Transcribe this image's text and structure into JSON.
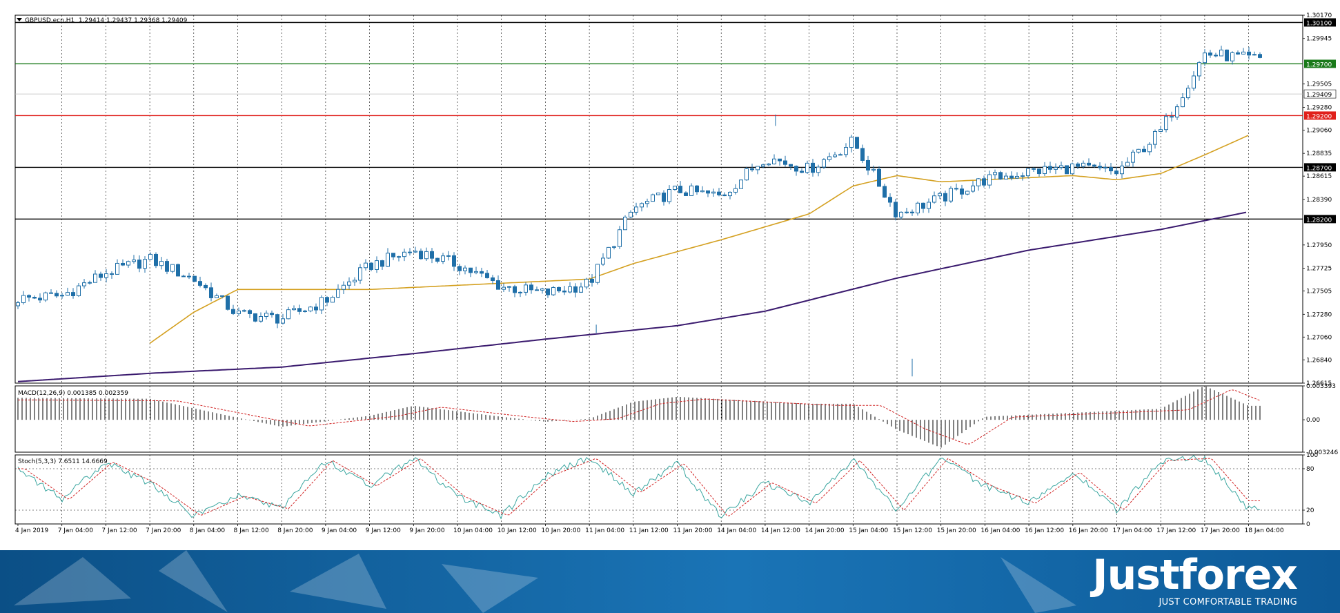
{
  "main_panel": {
    "header_label": "GBPUSD.ecn,H1  1.29414 1.29437 1.29368 1.29409",
    "y_ticks": [
      "1.30170",
      "1.29945",
      "1.29505",
      "1.29280",
      "1.29060",
      "1.28835",
      "1.28615",
      "1.28390",
      "1.27950",
      "1.27725",
      "1.27505",
      "1.27280",
      "1.27060",
      "1.26840",
      "1.26615"
    ],
    "last_price_label": "1.29409"
  },
  "levels": [
    {
      "value": 1.301,
      "label": "1.30100",
      "color": "#000000"
    },
    {
      "value": 1.297,
      "label": "1.29700",
      "color": "#1a7a1a"
    },
    {
      "value": 1.292,
      "label": "1.29200",
      "color": "#e0201b"
    },
    {
      "value": 1.287,
      "label": "1.28700",
      "color": "#000000"
    },
    {
      "value": 1.282,
      "label": "1.28200",
      "color": "#000000"
    }
  ],
  "macd_panel": {
    "header_label": "MACD(12,26,9) 0.001385 0.002359",
    "y_ticks": [
      "0.003393",
      "0.00",
      "-0.003246"
    ]
  },
  "stoch_panel": {
    "header_label": "Stoch(5,3,3) 7.6511 14.6669",
    "y_ticks": [
      "100",
      "80",
      "20",
      "0"
    ]
  },
  "x_axis_labels": [
    "4 Jan 2019",
    "7 Jan 04:00",
    "7 Jan 12:00",
    "7 Jan 20:00",
    "8 Jan 04:00",
    "8 Jan 12:00",
    "8 Jan 20:00",
    "9 Jan 04:00",
    "9 Jan 12:00",
    "9 Jan 20:00",
    "10 Jan 04:00",
    "10 Jan 12:00",
    "10 Jan 20:00",
    "11 Jan 04:00",
    "11 Jan 12:00",
    "11 Jan 20:00",
    "14 Jan 04:00",
    "14 Jan 12:00",
    "14 Jan 20:00",
    "15 Jan 04:00",
    "15 Jan 12:00",
    "15 Jan 20:00",
    "16 Jan 04:00",
    "16 Jan 12:00",
    "16 Jan 20:00",
    "17 Jan 04:00",
    "17 Jan 12:00",
    "17 Jan 20:00",
    "18 Jan 04:00"
  ],
  "colors": {
    "candle": "#1f6fa8",
    "ma_fast": "#d4a020",
    "ma_slow": "#3a1a6e",
    "macd_signal": "#d02020",
    "stoch_main": "#3aa6a0",
    "stoch_signal": "#d02020",
    "grid": "#000000",
    "footer_bg": "#1565a8"
  },
  "footer": {
    "logo": "Justforex",
    "tagline": "JUST COMFORTABLE TRADING"
  },
  "chart_data": {
    "type": "candlestick",
    "symbol": "GBPUSD.ecn",
    "timeframe": "H1",
    "ylim": [
      1.26615,
      1.3017
    ],
    "anchors": [
      {
        "x": "4 Jan 2019",
        "price": 1.2743
      },
      {
        "x": "7 Jan 04:00",
        "price": 1.2746
      },
      {
        "x": "7 Jan 12:00",
        "price": 1.2768
      },
      {
        "x": "7 Jan 20:00",
        "price": 1.2781
      },
      {
        "x": "8 Jan 04:00",
        "price": 1.2762
      },
      {
        "x": "8 Jan 12:00",
        "price": 1.2728
      },
      {
        "x": "8 Jan 20:00",
        "price": 1.2724
      },
      {
        "x": "9 Jan 04:00",
        "price": 1.2741
      },
      {
        "x": "9 Jan 12:00",
        "price": 1.2775
      },
      {
        "x": "9 Jan 20:00",
        "price": 1.279
      },
      {
        "x": "10 Jan 04:00",
        "price": 1.2776
      },
      {
        "x": "10 Jan 12:00",
        "price": 1.2755
      },
      {
        "x": "10 Jan 20:00",
        "price": 1.2748
      },
      {
        "x": "11 Jan 04:00",
        "price": 1.2758
      },
      {
        "x": "11 Jan 12:00",
        "price": 1.283
      },
      {
        "x": "11 Jan 20:00",
        "price": 1.2848
      },
      {
        "x": "14 Jan 04:00",
        "price": 1.2842
      },
      {
        "x": "14 Jan 12:00",
        "price": 1.288
      },
      {
        "x": "14 Jan 20:00",
        "price": 1.2868
      },
      {
        "x": "15 Jan 04:00",
        "price": 1.2895
      },
      {
        "x": "15 Jan 12:00",
        "price": 1.2825
      },
      {
        "x": "15 Jan 20:00",
        "price": 1.284
      },
      {
        "x": "16 Jan 04:00",
        "price": 1.2858
      },
      {
        "x": "16 Jan 12:00",
        "price": 1.2866
      },
      {
        "x": "16 Jan 20:00",
        "price": 1.287
      },
      {
        "x": "17 Jan 04:00",
        "price": 1.2865
      },
      {
        "x": "17 Jan 12:00",
        "price": 1.2905
      },
      {
        "x": "17 Jan 20:00",
        "price": 1.298
      },
      {
        "x": "18 Jan 04:00",
        "price": 1.2975
      }
    ],
    "ma_fast_anchors": [
      {
        "x": "7 Jan 20:00",
        "price": 1.27
      },
      {
        "x": "8 Jan 04:00",
        "price": 1.273
      },
      {
        "x": "8 Jan 12:00",
        "price": 1.2752
      },
      {
        "x": "8 Jan 20:00",
        "price": 1.2752
      },
      {
        "x": "9 Jan 12:00",
        "price": 1.2752
      },
      {
        "x": "10 Jan 04:00",
        "price": 1.2756
      },
      {
        "x": "11 Jan 04:00",
        "price": 1.2762
      },
      {
        "x": "11 Jan 12:00",
        "price": 1.2777
      },
      {
        "x": "14 Jan 04:00",
        "price": 1.28
      },
      {
        "x": "14 Jan 20:00",
        "price": 1.2825
      },
      {
        "x": "15 Jan 04:00",
        "price": 1.2852
      },
      {
        "x": "15 Jan 12:00",
        "price": 1.2862
      },
      {
        "x": "15 Jan 20:00",
        "price": 1.2856
      },
      {
        "x": "16 Jan 20:00",
        "price": 1.2862
      },
      {
        "x": "17 Jan 04:00",
        "price": 1.2858
      },
      {
        "x": "17 Jan 12:00",
        "price": 1.2864
      },
      {
        "x": "17 Jan 20:00",
        "price": 1.2882
      },
      {
        "x": "18 Jan 04:00",
        "price": 1.2901
      }
    ],
    "ma_slow_anchors": [
      {
        "x": "4 Jan 2019",
        "price": 1.2663
      },
      {
        "x": "7 Jan 20:00",
        "price": 1.2671
      },
      {
        "x": "8 Jan 20:00",
        "price": 1.2677
      },
      {
        "x": "9 Jan 20:00",
        "price": 1.269
      },
      {
        "x": "10 Jan 20:00",
        "price": 1.2704
      },
      {
        "x": "11 Jan 20:00",
        "price": 1.2717
      },
      {
        "x": "14 Jan 12:00",
        "price": 1.2731
      },
      {
        "x": "15 Jan 12:00",
        "price": 1.2763
      },
      {
        "x": "16 Jan 12:00",
        "price": 1.279
      },
      {
        "x": "17 Jan 12:00",
        "price": 1.281
      },
      {
        "x": "18 Jan 04:00",
        "price": 1.2827
      }
    ],
    "macd_ylim": [
      -0.003246,
      0.003393
    ],
    "macd_anchors": [
      {
        "x": "4 Jan 2019",
        "value": 0.0022
      },
      {
        "x": "7 Jan 20:00",
        "value": 0.0021
      },
      {
        "x": "8 Jan 12:00",
        "value": 0.0002
      },
      {
        "x": "8 Jan 20:00",
        "value": -0.0007
      },
      {
        "x": "9 Jan 12:00",
        "value": 0.0004
      },
      {
        "x": "9 Jan 20:00",
        "value": 0.0014
      },
      {
        "x": "10 Jan 12:00",
        "value": 0.0003
      },
      {
        "x": "10 Jan 20:00",
        "value": -0.0002
      },
      {
        "x": "11 Jan 04:00",
        "value": 0.0001
      },
      {
        "x": "11 Jan 12:00",
        "value": 0.0018
      },
      {
        "x": "11 Jan 20:00",
        "value": 0.0023
      },
      {
        "x": "14 Jan 20:00",
        "value": 0.0016
      },
      {
        "x": "15 Jan 04:00",
        "value": 0.0016
      },
      {
        "x": "15 Jan 12:00",
        "value": -0.001
      },
      {
        "x": "15 Jan 20:00",
        "value": -0.0028
      },
      {
        "x": "16 Jan 04:00",
        "value": 0.0003
      },
      {
        "x": "16 Jan 20:00",
        "value": 0.0007
      },
      {
        "x": "17 Jan 12:00",
        "value": 0.0011
      },
      {
        "x": "17 Jan 20:00",
        "value": 0.0034
      },
      {
        "x": "18 Jan 04:00",
        "value": 0.0014
      }
    ],
    "stoch_ylim": [
      0,
      100
    ],
    "stoch_anchors": [
      {
        "x": "4 Jan 2019",
        "value": 80
      },
      {
        "x": "7 Jan 04:00",
        "value": 35
      },
      {
        "x": "7 Jan 12:00",
        "value": 90
      },
      {
        "x": "7 Jan 20:00",
        "value": 58
      },
      {
        "x": "8 Jan 04:00",
        "value": 12
      },
      {
        "x": "8 Jan 12:00",
        "value": 40
      },
      {
        "x": "8 Jan 20:00",
        "value": 22
      },
      {
        "x": "9 Jan 04:00",
        "value": 92
      },
      {
        "x": "9 Jan 12:00",
        "value": 55
      },
      {
        "x": "9 Jan 20:00",
        "value": 95
      },
      {
        "x": "10 Jan 04:00",
        "value": 40
      },
      {
        "x": "10 Jan 12:00",
        "value": 12
      },
      {
        "x": "10 Jan 20:00",
        "value": 70
      },
      {
        "x": "11 Jan 04:00",
        "value": 95
      },
      {
        "x": "11 Jan 12:00",
        "value": 45
      },
      {
        "x": "11 Jan 20:00",
        "value": 88
      },
      {
        "x": "14 Jan 04:00",
        "value": 10
      },
      {
        "x": "14 Jan 12:00",
        "value": 60
      },
      {
        "x": "14 Jan 20:00",
        "value": 30
      },
      {
        "x": "15 Jan 04:00",
        "value": 92
      },
      {
        "x": "15 Jan 12:00",
        "value": 20
      },
      {
        "x": "15 Jan 20:00",
        "value": 95
      },
      {
        "x": "16 Jan 04:00",
        "value": 55
      },
      {
        "x": "16 Jan 12:00",
        "value": 30
      },
      {
        "x": "16 Jan 20:00",
        "value": 75
      },
      {
        "x": "17 Jan 04:00",
        "value": 20
      },
      {
        "x": "17 Jan 12:00",
        "value": 92
      },
      {
        "x": "17 Jan 20:00",
        "value": 95
      },
      {
        "x": "18 Jan 04:00",
        "value": 22
      }
    ]
  }
}
